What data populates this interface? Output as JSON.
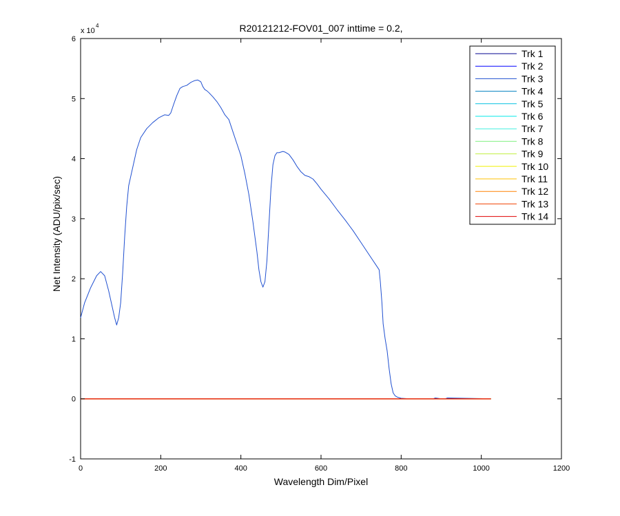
{
  "chart_data": {
    "type": "line",
    "title": "R20121212-FOV01_007 inttime = 0.2,",
    "xlabel": "Wavelength Dim/Pixel",
    "ylabel": "Net Intensity (ADU/pix/sec)",
    "y_multiplier_label": "x 10",
    "y_multiplier_exponent": "4",
    "xlim": [
      0,
      1200
    ],
    "ylim": [
      -10000,
      60000
    ],
    "xticks": [
      0,
      200,
      400,
      600,
      800,
      1000,
      1200
    ],
    "yticks": [
      -10000,
      0,
      10000,
      20000,
      30000,
      40000,
      50000,
      60000
    ],
    "xtick_labels": [
      "0",
      "200",
      "400",
      "600",
      "800",
      "1000",
      "1200"
    ],
    "ytick_labels": [
      "-1",
      "0",
      "1",
      "2",
      "3",
      "4",
      "5",
      "6"
    ],
    "grid": false,
    "legend_position": "top-right",
    "series": [
      {
        "name": "Trk 1",
        "color": "#00008f",
        "x": [
          0,
          1024
        ],
        "y": [
          0,
          0
        ]
      },
      {
        "name": "Trk 2",
        "color": "#0000ff",
        "x": [
          0,
          1024
        ],
        "y": [
          0,
          0
        ]
      },
      {
        "name": "Trk 3",
        "color": "#1f4fd0",
        "x": [
          0,
          10,
          25,
          40,
          50,
          60,
          70,
          80,
          85,
          90,
          95,
          100,
          105,
          110,
          115,
          120,
          130,
          140,
          150,
          165,
          180,
          195,
          210,
          220,
          225,
          232,
          240,
          248,
          255,
          265,
          275,
          285,
          292,
          300,
          305,
          310,
          315,
          320,
          330,
          340,
          350,
          360,
          370,
          380,
          390,
          400,
          410,
          420,
          430,
          440,
          445,
          450,
          455,
          460,
          465,
          470,
          475,
          480,
          485,
          490,
          495,
          500,
          505,
          510,
          520,
          530,
          540,
          550,
          560,
          570,
          580,
          590,
          600,
          620,
          640,
          660,
          680,
          700,
          720,
          735,
          745,
          748,
          752,
          755,
          760,
          765,
          770,
          775,
          780,
          785,
          790,
          800,
          820,
          860,
          880,
          885,
          900,
          910,
          915,
          1024
        ],
        "y": [
          13500,
          16000,
          18500,
          20500,
          21200,
          20500,
          18000,
          15000,
          13500,
          12300,
          13500,
          16000,
          21000,
          27000,
          32000,
          35500,
          38500,
          41500,
          43500,
          45000,
          46000,
          46800,
          47300,
          47200,
          47600,
          49000,
          50500,
          51700,
          52000,
          52200,
          52700,
          53000,
          53100,
          52800,
          52000,
          51500,
          51300,
          51000,
          50300,
          49500,
          48500,
          47300,
          46500,
          44500,
          42500,
          40500,
          37500,
          34000,
          29500,
          24500,
          21500,
          19500,
          18600,
          19500,
          23000,
          29000,
          35000,
          39000,
          40500,
          41000,
          41000,
          41100,
          41200,
          41100,
          40700,
          39800,
          38700,
          37800,
          37200,
          37000,
          36600,
          35800,
          34900,
          33300,
          31500,
          29800,
          28000,
          26000,
          24000,
          22500,
          21500,
          19500,
          16000,
          12500,
          10000,
          8000,
          5000,
          2500,
          1000,
          500,
          300,
          100,
          0,
          0,
          0,
          150,
          0,
          0,
          150,
          0
        ]
      },
      {
        "name": "Trk 4",
        "color": "#0080c0",
        "x": [
          0,
          1024
        ],
        "y": [
          0,
          0
        ]
      },
      {
        "name": "Trk 5",
        "color": "#00c0e0",
        "x": [
          0,
          1024
        ],
        "y": [
          0,
          0
        ]
      },
      {
        "name": "Trk 6",
        "color": "#00e8e8",
        "x": [
          0,
          1024
        ],
        "y": [
          0,
          0
        ]
      },
      {
        "name": "Trk 7",
        "color": "#40f0e0",
        "x": [
          0,
          1024
        ],
        "y": [
          0,
          0
        ]
      },
      {
        "name": "Trk 8",
        "color": "#80f080",
        "x": [
          0,
          1024
        ],
        "y": [
          0,
          0
        ]
      },
      {
        "name": "Trk 9",
        "color": "#c0f040",
        "x": [
          0,
          1024
        ],
        "y": [
          0,
          0
        ]
      },
      {
        "name": "Trk 10",
        "color": "#f0f000",
        "x": [
          0,
          1024
        ],
        "y": [
          0,
          0
        ]
      },
      {
        "name": "Trk 11",
        "color": "#ffc000",
        "x": [
          0,
          1024
        ],
        "y": [
          0,
          0
        ]
      },
      {
        "name": "Trk 12",
        "color": "#ff8000",
        "x": [
          0,
          1024
        ],
        "y": [
          0,
          0
        ]
      },
      {
        "name": "Trk 13",
        "color": "#f04000",
        "x": [
          0,
          1024
        ],
        "y": [
          0,
          0
        ]
      },
      {
        "name": "Trk 14",
        "color": "#e00000",
        "x": [
          0,
          1024
        ],
        "y": [
          0,
          0
        ]
      }
    ]
  }
}
